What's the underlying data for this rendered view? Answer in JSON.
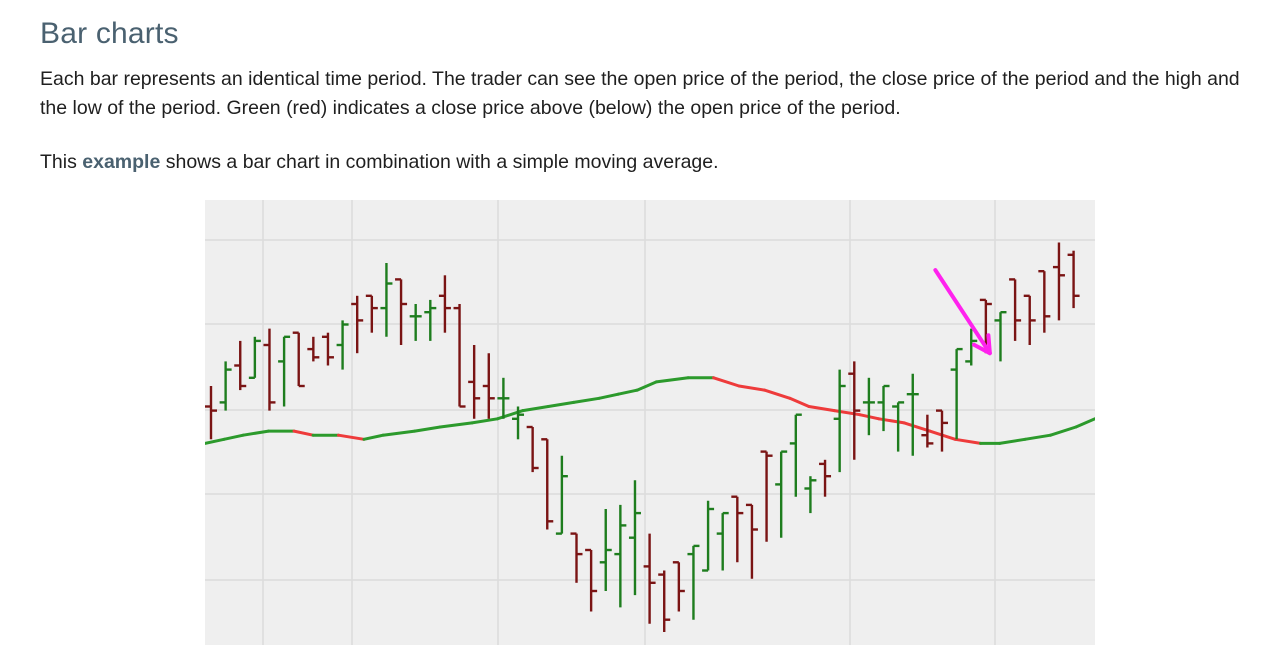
{
  "heading": "Bar charts",
  "paragraph1": "Each bar represents an identical time period. The trader can see the open price of the period, the close price of the period and the high and the low of the period. Green (red) indicates a close price above (below) the open price of the period.",
  "paragraph2": {
    "before": "This ",
    "link": "example",
    "after": " shows a bar chart in combination with a simple moving average."
  },
  "chart_data": {
    "type": "ohlc",
    "title": "",
    "xlabel": "",
    "ylabel": "",
    "grid": true,
    "ylim": [
      0,
      100
    ],
    "colors": {
      "up": "#1e7d1e",
      "down": "#7a1414",
      "ma_up": "#2c9a2c",
      "ma_down": "#ee3b3b",
      "arrow": "#ff22ee",
      "grid": "#dcdcdc",
      "background": "#efefef"
    },
    "bars": [
      [
        55,
        60,
        47,
        54
      ],
      [
        56,
        66,
        54,
        64
      ],
      [
        65,
        71,
        59,
        60
      ],
      [
        62,
        72,
        63,
        71
      ],
      [
        70,
        74,
        54,
        56
      ],
      [
        66,
        72,
        55,
        72
      ],
      [
        73,
        70,
        61,
        60
      ],
      [
        69,
        72,
        66,
        67
      ],
      [
        72,
        73,
        65,
        67
      ],
      [
        70,
        76,
        64,
        75
      ],
      [
        80,
        82,
        68,
        76
      ],
      [
        82,
        81,
        73,
        79
      ],
      [
        79,
        90,
        72,
        85
      ],
      [
        86,
        85,
        70,
        80
      ],
      [
        77,
        80,
        71,
        77
      ],
      [
        78,
        81,
        71,
        79
      ],
      [
        82,
        87,
        73,
        79
      ],
      [
        79,
        80,
        55,
        55
      ],
      [
        61,
        70,
        52,
        57
      ],
      [
        60,
        68,
        52,
        57
      ],
      [
        57,
        62,
        52,
        57
      ],
      [
        52,
        55,
        47,
        53
      ],
      [
        50,
        47,
        39,
        40
      ],
      [
        47,
        42,
        25,
        27
      ],
      [
        24,
        43,
        25,
        38
      ],
      [
        24,
        21,
        12,
        19
      ],
      [
        20,
        14,
        5,
        10
      ],
      [
        17,
        30,
        10,
        20
      ],
      [
        19,
        31,
        6,
        26
      ],
      [
        23,
        37,
        9,
        29
      ],
      [
        16,
        24,
        2,
        12
      ],
      [
        14,
        15,
        0,
        3
      ],
      [
        17,
        17,
        5,
        10
      ],
      [
        19,
        18,
        3,
        21
      ],
      [
        15,
        32,
        18,
        30
      ],
      [
        24,
        28,
        15,
        29
      ],
      [
        33,
        24,
        17,
        29
      ],
      [
        31,
        28,
        13,
        25
      ],
      [
        44,
        35,
        22,
        43
      ],
      [
        36,
        43,
        23,
        44
      ],
      [
        46,
        51,
        33,
        53
      ],
      [
        35,
        38,
        29,
        37
      ],
      [
        41,
        42,
        33,
        38
      ],
      [
        52,
        64,
        39,
        60
      ],
      [
        63,
        66,
        42,
        54
      ],
      [
        56,
        62,
        48,
        56
      ],
      [
        56,
        59,
        49,
        60
      ],
      [
        55,
        54,
        44,
        56
      ],
      [
        58,
        63,
        43,
        58
      ],
      [
        48,
        53,
        45,
        46
      ],
      [
        54,
        50,
        44,
        51
      ],
      [
        64,
        62,
        47,
        69
      ],
      [
        66,
        74,
        65,
        71
      ],
      [
        81,
        72,
        68,
        80
      ],
      [
        76,
        72,
        66,
        78
      ],
      [
        86,
        73,
        71,
        76
      ],
      [
        82,
        74,
        70,
        76
      ],
      [
        88,
        75,
        73,
        77
      ],
      [
        89,
        95,
        76,
        87
      ],
      [
        92,
        93,
        79,
        82
      ]
    ],
    "sma": [
      [
        0,
        46
      ],
      [
        3,
        47
      ],
      [
        6,
        48
      ],
      [
        10,
        49
      ],
      [
        14,
        49
      ],
      [
        17,
        48
      ],
      [
        21,
        48
      ],
      [
        25,
        47
      ],
      [
        28,
        48
      ],
      [
        33,
        49
      ],
      [
        37,
        50
      ],
      [
        42,
        51
      ],
      [
        46,
        52
      ],
      [
        50,
        54
      ],
      [
        54,
        55
      ],
      [
        58,
        56
      ],
      [
        62,
        57
      ],
      [
        65,
        58
      ],
      [
        68,
        59
      ],
      [
        71,
        61
      ],
      [
        76,
        62
      ],
      [
        80,
        62
      ],
      [
        84,
        60
      ],
      [
        88,
        59
      ],
      [
        92,
        57
      ],
      [
        95,
        55
      ],
      [
        99,
        54
      ],
      [
        103,
        53
      ],
      [
        106,
        52
      ],
      [
        110,
        51
      ],
      [
        114,
        49
      ],
      [
        118,
        47
      ],
      [
        122,
        46
      ],
      [
        125,
        46
      ],
      [
        129,
        47
      ],
      [
        133,
        48
      ],
      [
        137,
        50
      ],
      [
        140,
        52
      ]
    ],
    "annotation": {
      "type": "arrow",
      "from_index": 49,
      "from_value": 79,
      "to_index": 53,
      "to_value": 68
    }
  }
}
